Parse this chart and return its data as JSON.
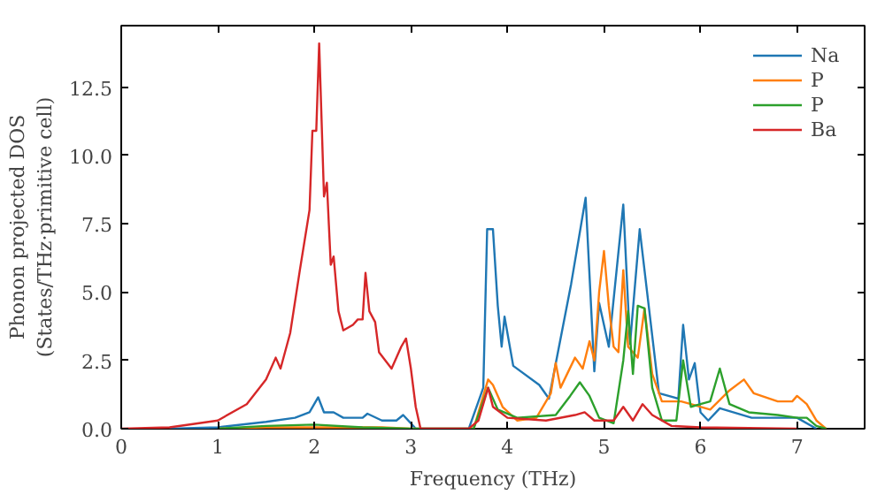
{
  "chart_data": {
    "type": "line",
    "xlabel": "Frequency (THz)",
    "ylabel": "Phonon projected DOS\n(States/THz·primitive cell)",
    "xlim": [
      0,
      7.7
    ],
    "ylim": [
      0,
      14.75
    ],
    "xticks": [
      0,
      1,
      2,
      3,
      4,
      5,
      6,
      7
    ],
    "yticks": [
      {
        "value": 0,
        "label": "0.0"
      },
      {
        "value": 2.5,
        "label": "2.5"
      },
      {
        "value": 5,
        "label": "5.0"
      },
      {
        "value": 7.5,
        "label": "7.5"
      },
      {
        "value": 10,
        "label": "10.0"
      },
      {
        "value": 12.5,
        "label": "12.5"
      }
    ],
    "legend": "top right",
    "grid": false,
    "series": [
      {
        "name": "Na",
        "color": "#1f77b4",
        "x": [
          0.5,
          1.0,
          1.5,
          1.8,
          1.95,
          2.04,
          2.1,
          2.2,
          2.3,
          2.5,
          2.55,
          2.7,
          2.85,
          2.92,
          3.0,
          3.05,
          3.6,
          3.7,
          3.75,
          3.79,
          3.85,
          3.9,
          3.94,
          3.97,
          4.06,
          4.33,
          4.43,
          4.66,
          4.81,
          4.9,
          4.95,
          5.05,
          5.2,
          5.27,
          5.37,
          5.57,
          5.77,
          5.82,
          5.88,
          5.94,
          6.0,
          6.08,
          6.2,
          6.53,
          7.0,
          7.2
        ],
        "values": [
          0,
          0.05,
          0.25,
          0.4,
          0.6,
          1.15,
          0.6,
          0.6,
          0.4,
          0.4,
          0.55,
          0.3,
          0.3,
          0.5,
          0.2,
          0,
          0,
          1.0,
          1.5,
          7.3,
          7.3,
          4.5,
          3.0,
          4.1,
          2.3,
          1.6,
          1.1,
          5.3,
          8.45,
          2.1,
          4.6,
          3.0,
          8.2,
          3.1,
          7.3,
          1.3,
          1.1,
          3.8,
          1.8,
          2.4,
          0.6,
          0.3,
          0.75,
          0.4,
          0.4,
          0
        ]
      },
      {
        "name": "P",
        "color": "#ff7f0e",
        "x": [
          1.0,
          1.5,
          2.0,
          2.7,
          3.0,
          3.65,
          3.8,
          3.85,
          3.95,
          4.1,
          4.3,
          4.45,
          4.5,
          4.55,
          4.7,
          4.78,
          4.85,
          4.9,
          4.95,
          5.0,
          5.05,
          5.1,
          5.15,
          5.2,
          5.25,
          5.35,
          5.42,
          5.5,
          5.6,
          5.8,
          5.9,
          6.1,
          6.3,
          6.45,
          6.55,
          6.8,
          6.95,
          7.0,
          7.1,
          7.2,
          7.3
        ],
        "values": [
          0,
          0.05,
          0.05,
          0.05,
          0,
          0,
          1.8,
          1.6,
          0.8,
          0.3,
          0.4,
          1.3,
          2.4,
          1.5,
          2.6,
          2.2,
          3.2,
          2.5,
          5.0,
          6.5,
          4.5,
          3.0,
          2.8,
          5.8,
          3.0,
          2.6,
          4.4,
          2.0,
          1.0,
          1.0,
          0.9,
          0.7,
          1.4,
          1.8,
          1.3,
          1.0,
          1.0,
          1.2,
          0.9,
          0.3,
          0
        ]
      },
      {
        "name": "P",
        "color": "#2ca02c",
        "x": [
          1.0,
          1.5,
          2.0,
          2.5,
          3.0,
          3.65,
          3.8,
          3.9,
          4.1,
          4.5,
          4.65,
          4.75,
          4.85,
          4.95,
          5.1,
          5.2,
          5.25,
          5.3,
          5.35,
          5.42,
          5.5,
          5.6,
          5.75,
          5.82,
          5.9,
          6.0,
          6.1,
          6.2,
          6.3,
          6.5,
          6.8,
          7.0,
          7.1,
          7.2,
          7.3
        ],
        "values": [
          0,
          0.1,
          0.15,
          0.05,
          0,
          0,
          1.5,
          0.7,
          0.4,
          0.5,
          1.2,
          1.7,
          1.2,
          0.4,
          0.2,
          2.5,
          4.3,
          2.0,
          4.5,
          4.4,
          1.5,
          0.3,
          0.3,
          2.5,
          0.8,
          0.9,
          1.0,
          2.2,
          0.9,
          0.6,
          0.5,
          0.4,
          0.4,
          0.1,
          0
        ]
      },
      {
        "name": "Ba",
        "color": "#d62728",
        "x": [
          0,
          0.5,
          1.0,
          1.3,
          1.5,
          1.6,
          1.65,
          1.75,
          1.85,
          1.95,
          1.98,
          2.02,
          2.05,
          2.1,
          2.13,
          2.17,
          2.2,
          2.25,
          2.3,
          2.4,
          2.45,
          2.5,
          2.53,
          2.57,
          2.63,
          2.67,
          2.8,
          2.9,
          2.95,
          3.0,
          3.05,
          3.1,
          3.6,
          3.7,
          3.8,
          3.85,
          4.0,
          4.4,
          4.7,
          4.8,
          4.9,
          5.1,
          5.2,
          5.3,
          5.4,
          5.5,
          5.7,
          6.0,
          7.0
        ],
        "values": [
          0,
          0.05,
          0.3,
          0.9,
          1.8,
          2.6,
          2.2,
          3.5,
          5.8,
          8.0,
          10.9,
          10.9,
          14.1,
          8.5,
          9.0,
          6.0,
          6.3,
          4.3,
          3.6,
          3.8,
          4.0,
          4.0,
          5.7,
          4.3,
          3.9,
          2.8,
          2.2,
          3.0,
          3.3,
          2.2,
          0.8,
          0,
          0,
          0.3,
          1.5,
          0.8,
          0.4,
          0.3,
          0.5,
          0.6,
          0.3,
          0.3,
          0.8,
          0.3,
          0.9,
          0.5,
          0.1,
          0.05,
          0
        ]
      }
    ]
  }
}
